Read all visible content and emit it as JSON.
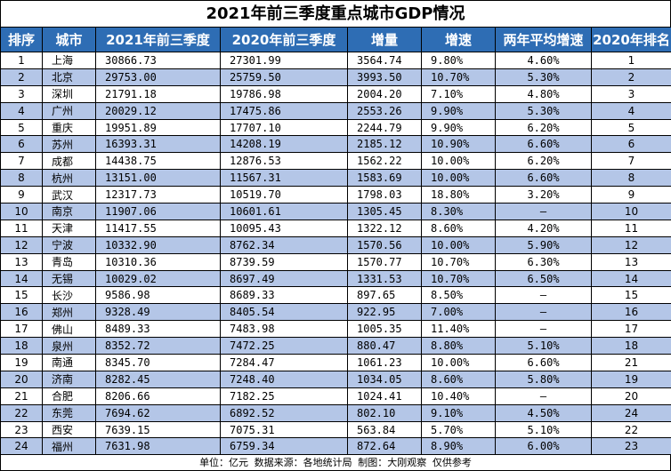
{
  "title": "2021年前三季度重点城市GDP情况",
  "headers": [
    "排序",
    "城市",
    "2021年前三季度",
    "2020年前三季度",
    "增量",
    "增速",
    "两年平均增速",
    "2020年排名"
  ],
  "rows": [
    [
      "1",
      "上海",
      "30866.73",
      "27301.99",
      "3564.74",
      "9.80%",
      "4.60%",
      "1"
    ],
    [
      "2",
      "北京",
      "29753.00",
      "25759.50",
      "3993.50",
      "10.70%",
      "5.30%",
      "2"
    ],
    [
      "3",
      "深圳",
      "21791.18",
      "19786.98",
      "2004.20",
      "7.10%",
      "4.80%",
      "3"
    ],
    [
      "4",
      "广州",
      "20029.12",
      "17475.86",
      "2553.26",
      "9.90%",
      "5.30%",
      "4"
    ],
    [
      "5",
      "重庆",
      "19951.89",
      "17707.10",
      "2244.79",
      "9.90%",
      "6.20%",
      "5"
    ],
    [
      "6",
      "苏州",
      "16393.31",
      "14208.19",
      "2185.12",
      "10.90%",
      "6.60%",
      "6"
    ],
    [
      "7",
      "成都",
      "14438.75",
      "12876.53",
      "1562.22",
      "10.00%",
      "6.20%",
      "7"
    ],
    [
      "8",
      "杭州",
      "13151.00",
      "11567.31",
      "1583.69",
      "10.00%",
      "6.60%",
      "8"
    ],
    [
      "9",
      "武汉",
      "12317.73",
      "10519.70",
      "1798.03",
      "18.80%",
      "3.20%",
      "9"
    ],
    [
      "10",
      "南京",
      "11907.06",
      "10601.61",
      "1305.45",
      "8.30%",
      "—",
      "10"
    ],
    [
      "11",
      "天津",
      "11417.55",
      "10095.43",
      "1322.12",
      "8.60%",
      "4.20%",
      "11"
    ],
    [
      "12",
      "宁波",
      "10332.90",
      "8762.34",
      "1570.56",
      "10.00%",
      "5.90%",
      "12"
    ],
    [
      "13",
      "青岛",
      "10310.36",
      "8739.59",
      "1570.77",
      "10.70%",
      "6.30%",
      "13"
    ],
    [
      "14",
      "无锡",
      "10029.02",
      "8697.49",
      "1331.53",
      "10.70%",
      "6.50%",
      "14"
    ],
    [
      "15",
      "长沙",
      "9586.98",
      "8689.33",
      "897.65",
      "8.50%",
      "—",
      "15"
    ],
    [
      "16",
      "郑州",
      "9328.49",
      "8405.54",
      "922.95",
      "7.00%",
      "—",
      "16"
    ],
    [
      "17",
      "佛山",
      "8489.33",
      "7483.98",
      "1005.35",
      "11.40%",
      "—",
      "17"
    ],
    [
      "18",
      "泉州",
      "8352.72",
      "7472.25",
      "880.47",
      "8.80%",
      "5.10%",
      "18"
    ],
    [
      "19",
      "南通",
      "8345.70",
      "7284.47",
      "1061.23",
      "10.00%",
      "6.60%",
      "21"
    ],
    [
      "20",
      "济南",
      "8282.45",
      "7248.40",
      "1034.05",
      "8.60%",
      "5.80%",
      "19"
    ],
    [
      "21",
      "合肥",
      "8206.66",
      "7182.25",
      "1024.41",
      "10.40%",
      "—",
      "20"
    ],
    [
      "22",
      "东莞",
      "7694.62",
      "6892.52",
      "802.10",
      "9.10%",
      "4.50%",
      "24"
    ],
    [
      "23",
      "西安",
      "7639.15",
      "7075.31",
      "563.84",
      "5.70%",
      "5.10%",
      "22"
    ],
    [
      "24",
      "福州",
      "7631.98",
      "6759.34",
      "872.64",
      "8.90%",
      "6.00%",
      "23"
    ]
  ],
  "footer": "单位：亿元  数据来源：各地统计局  制图：大刚观察  仅供参考",
  "colors": {
    "header_bg": "#2e6db4",
    "header_text": "#ffffff",
    "row_alt_bg": "#b4c6e7",
    "row_bg": "#ffffff"
  }
}
